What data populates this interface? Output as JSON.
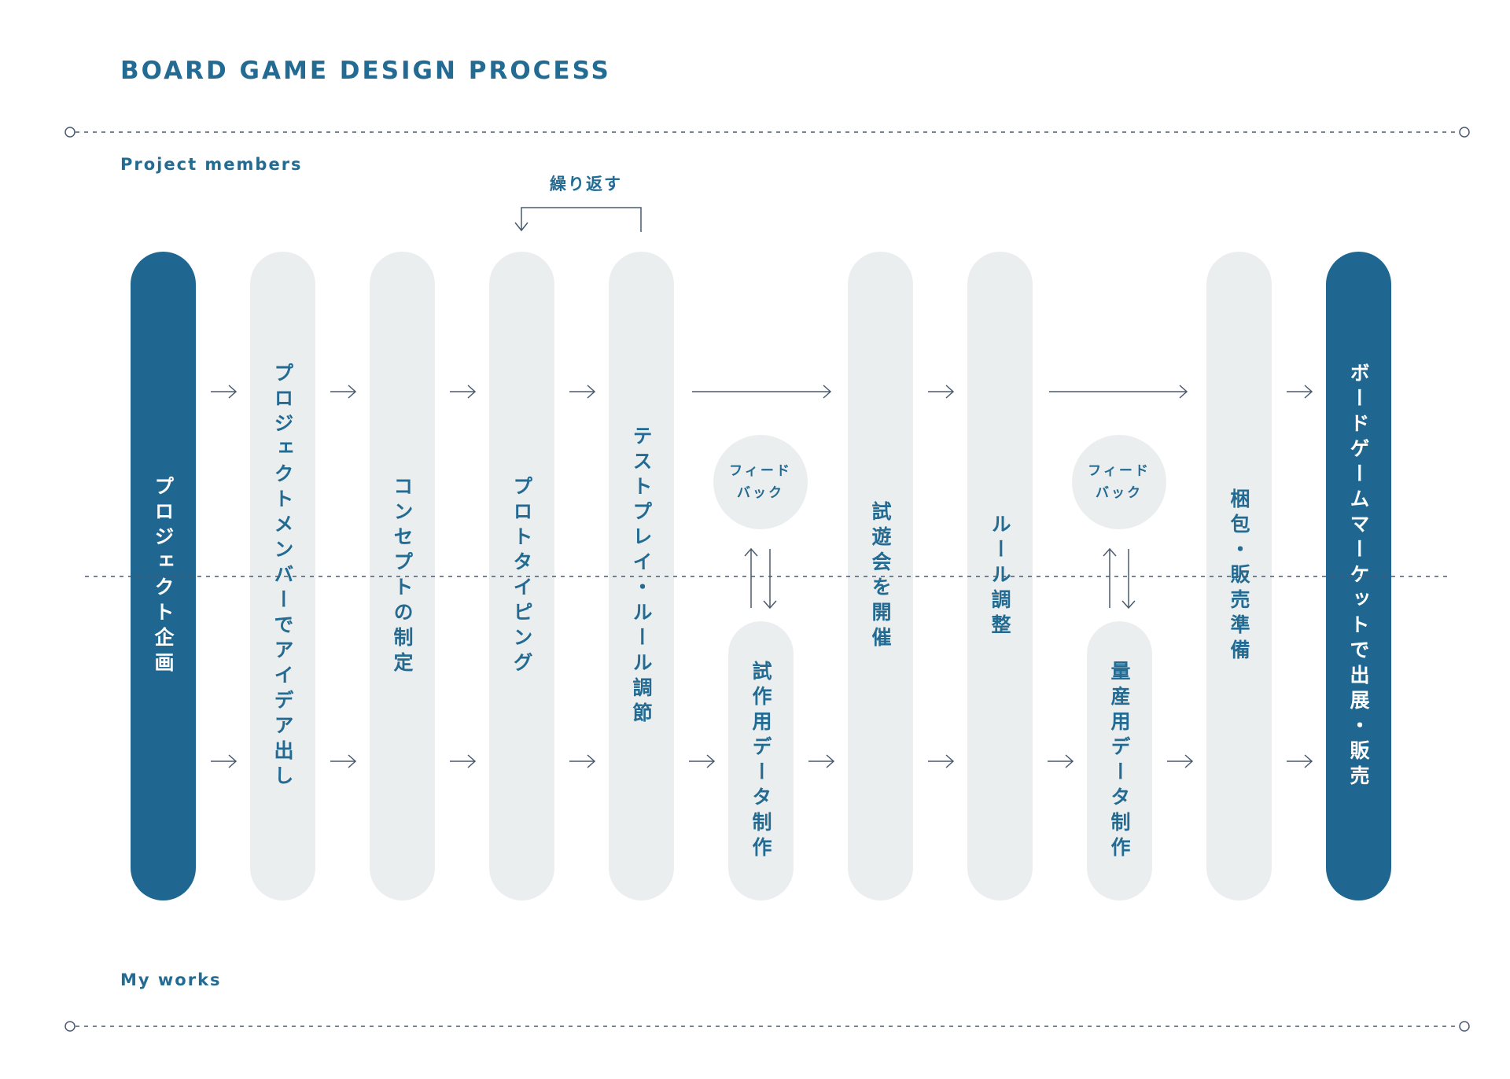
{
  "title": "BOARD GAME DESIGN PROCESS",
  "sections": {
    "project_members": "Project members",
    "my_works": "My works"
  },
  "repeat_label": "繰り返す",
  "steps": [
    {
      "label": "プロジェクト企画",
      "emphasis": true
    },
    {
      "label": "プロジェクトメンバーでアイデア出し",
      "emphasis": false
    },
    {
      "label": "コンセプトの制定",
      "emphasis": false
    },
    {
      "label": "プロトタイピング",
      "emphasis": false
    },
    {
      "label": "テストプレイ・ルール調節",
      "emphasis": false
    },
    {
      "label": "試作用データ制作",
      "emphasis": false
    },
    {
      "label": "試遊会を開催",
      "emphasis": false
    },
    {
      "label": "ルール調整",
      "emphasis": false
    },
    {
      "label": "量産用データ制作",
      "emphasis": false
    },
    {
      "label": "梱包・販売準備",
      "emphasis": false
    },
    {
      "label": "ボードゲームマーケットで出展・販売",
      "emphasis": true
    }
  ],
  "feedback": [
    {
      "line1": "フィード",
      "line2": "バック"
    },
    {
      "line1": "フィード",
      "line2": "バック"
    }
  ],
  "colors": {
    "accent": "#1f6790",
    "text": "#236b92",
    "pill": "#ebeeef",
    "line": "#4a5a6e"
  }
}
